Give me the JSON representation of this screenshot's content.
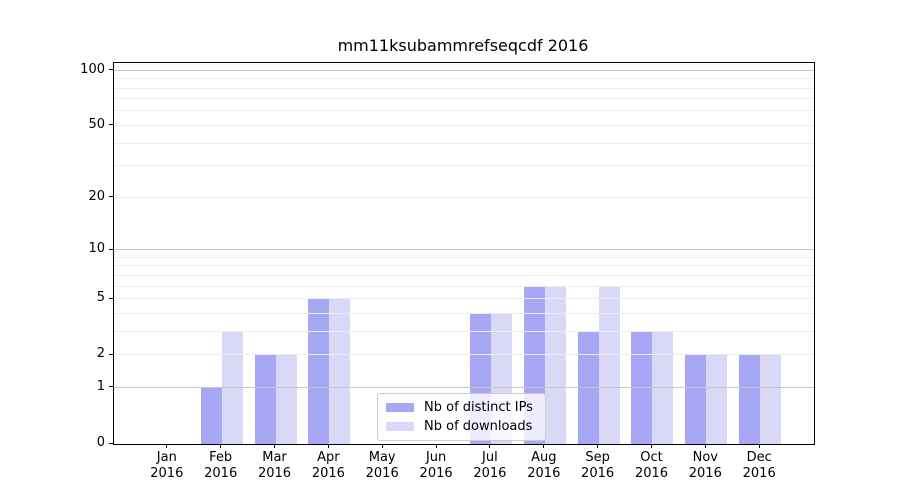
{
  "title": "mm11ksubammrefseqcdf 2016",
  "chart_data": {
    "type": "bar",
    "title": "mm11ksubammrefseqcdf 2016",
    "year": "2016",
    "months": [
      "Jan",
      "Feb",
      "Mar",
      "Apr",
      "May",
      "Jun",
      "Jul",
      "Aug",
      "Sep",
      "Oct",
      "Nov",
      "Dec"
    ],
    "categories": [
      "Jan 2016",
      "Feb 2016",
      "Mar 2016",
      "Apr 2016",
      "May 2016",
      "Jun 2016",
      "Jul 2016",
      "Aug 2016",
      "Sep 2016",
      "Oct 2016",
      "Nov 2016",
      "Dec 2016"
    ],
    "series": [
      {
        "name": "Nb of distinct IPs",
        "color": "#a7a7f5",
        "values": [
          0,
          1,
          2,
          5,
          0,
          0,
          4,
          6,
          3,
          3,
          2,
          2
        ]
      },
      {
        "name": "Nb of downloads",
        "color": "#d9d9f7",
        "values": [
          0,
          3,
          2,
          5,
          0,
          0,
          4,
          6,
          6,
          3,
          2,
          2
        ]
      }
    ],
    "y_scale": "log1p",
    "y_ticks": [
      0,
      1,
      2,
      5,
      10,
      20,
      50,
      100
    ],
    "y_max": 110,
    "ylim": [
      0,
      110
    ],
    "grid_minor": [
      2,
      3,
      4,
      5,
      6,
      7,
      8,
      9,
      20,
      30,
      40,
      50,
      60,
      70,
      80,
      90
    ],
    "grid_major": [
      1,
      10,
      100
    ],
    "grid": "on",
    "legend_position": "lower center",
    "colors": {
      "bar_distinct_ips": "#a7a7f5",
      "bar_downloads": "#d9d9f7",
      "grid_minor": "#ececec",
      "grid_major": "#c6c6c6",
      "spine": "#000000",
      "background": "#ffffff"
    }
  }
}
